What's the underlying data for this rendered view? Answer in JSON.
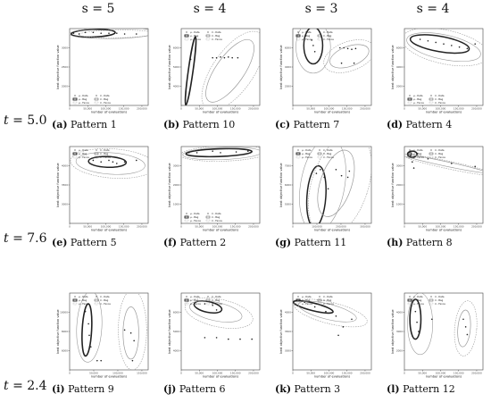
{
  "column_headers": [
    "s = 5",
    "s = 4",
    "s = 3",
    "s = 4"
  ],
  "row_labels": [
    {
      "var": "t",
      "eq": " = 5.0"
    },
    {
      "var": "t",
      "eq": " = 7.6"
    },
    {
      "var": "t",
      "eq": " = 2.4"
    }
  ],
  "panels": [
    {
      "letter": "(a)",
      "title": "Pattern 1",
      "xticks": [
        "0",
        "50,000",
        "100,000",
        "150,000",
        "200,000"
      ],
      "yticks": [
        "2000",
        "2500",
        "3000"
      ]
    },
    {
      "letter": "(b)",
      "title": "Pattern 10",
      "xticks": [
        "0",
        "50,000",
        "100,000",
        "150,000",
        "200,000"
      ],
      "yticks": [
        "4000",
        "5000",
        "6000"
      ]
    },
    {
      "letter": "(c)",
      "title": "Pattern 7",
      "xticks": [
        "0",
        "50,000",
        "100,000",
        "150,000",
        "200,000"
      ],
      "yticks": [
        "2000",
        "4000",
        "6000"
      ]
    },
    {
      "letter": "(d)",
      "title": "Pattern 4",
      "xticks": [
        "0",
        "50,000",
        "100,000",
        "150,000",
        "200,000"
      ],
      "yticks": [
        "2000",
        "4000",
        "6000"
      ]
    },
    {
      "letter": "(e)",
      "title": "Pattern 5",
      "xticks": [
        "0",
        "50,000",
        "100,000",
        "150,000",
        "200,000"
      ],
      "yticks": [
        "3000",
        "3500",
        "4000"
      ]
    },
    {
      "letter": "(f)",
      "title": "Pattern 2",
      "xticks": [
        "0",
        "50,000",
        "100,000",
        "150,000",
        "200,000"
      ],
      "yticks": [
        "1000",
        "2000",
        "3000"
      ]
    },
    {
      "letter": "(g)",
      "title": "Pattern 11",
      "xticks": [
        "0",
        "100,000",
        "200,000",
        "300,000"
      ],
      "yticks": [
        "5000",
        "6000",
        "7000"
      ]
    },
    {
      "letter": "(h)",
      "title": "Pattern 8",
      "xticks": [
        "0",
        "50,000",
        "100,000",
        "150,000",
        "200,000"
      ],
      "yticks": [
        "1000",
        "2000",
        "3000"
      ]
    },
    {
      "letter": "(i)",
      "title": "Pattern 9",
      "xticks": [
        "0",
        "50,000",
        "100,000",
        "150,000"
      ],
      "yticks": [
        "6000",
        "8000",
        "10000"
      ]
    },
    {
      "letter": "(j)",
      "title": "Pattern 6",
      "xticks": [
        "0",
        "50,000",
        "100,000",
        "150,000",
        "200,000"
      ],
      "yticks": [
        "4000",
        "5000",
        "6000"
      ]
    },
    {
      "letter": "(k)",
      "title": "Pattern 3",
      "xticks": [
        "0",
        "50,000",
        "100,000",
        "150,000",
        "200,000"
      ],
      "yticks": [
        "3000",
        "3500",
        "4000"
      ]
    },
    {
      "letter": "(l)",
      "title": "Pattern 12",
      "xticks": [
        "0",
        "50,000",
        "100,000",
        "150,000",
        "200,000"
      ],
      "yticks": [
        "2000",
        "3000",
        "4000"
      ]
    }
  ],
  "axis_labels": {
    "x": "number of evaluations",
    "y": "best objective function value"
  },
  "legend": [
    "μ - Data",
    "σ - Data",
    "μ - Bag",
    "σ - Bag",
    "μ - Fence",
    "σ - Fence"
  ],
  "colors": {
    "ink": "#222222",
    "light": "#9a9a9a",
    "axis": "#444444"
  }
}
